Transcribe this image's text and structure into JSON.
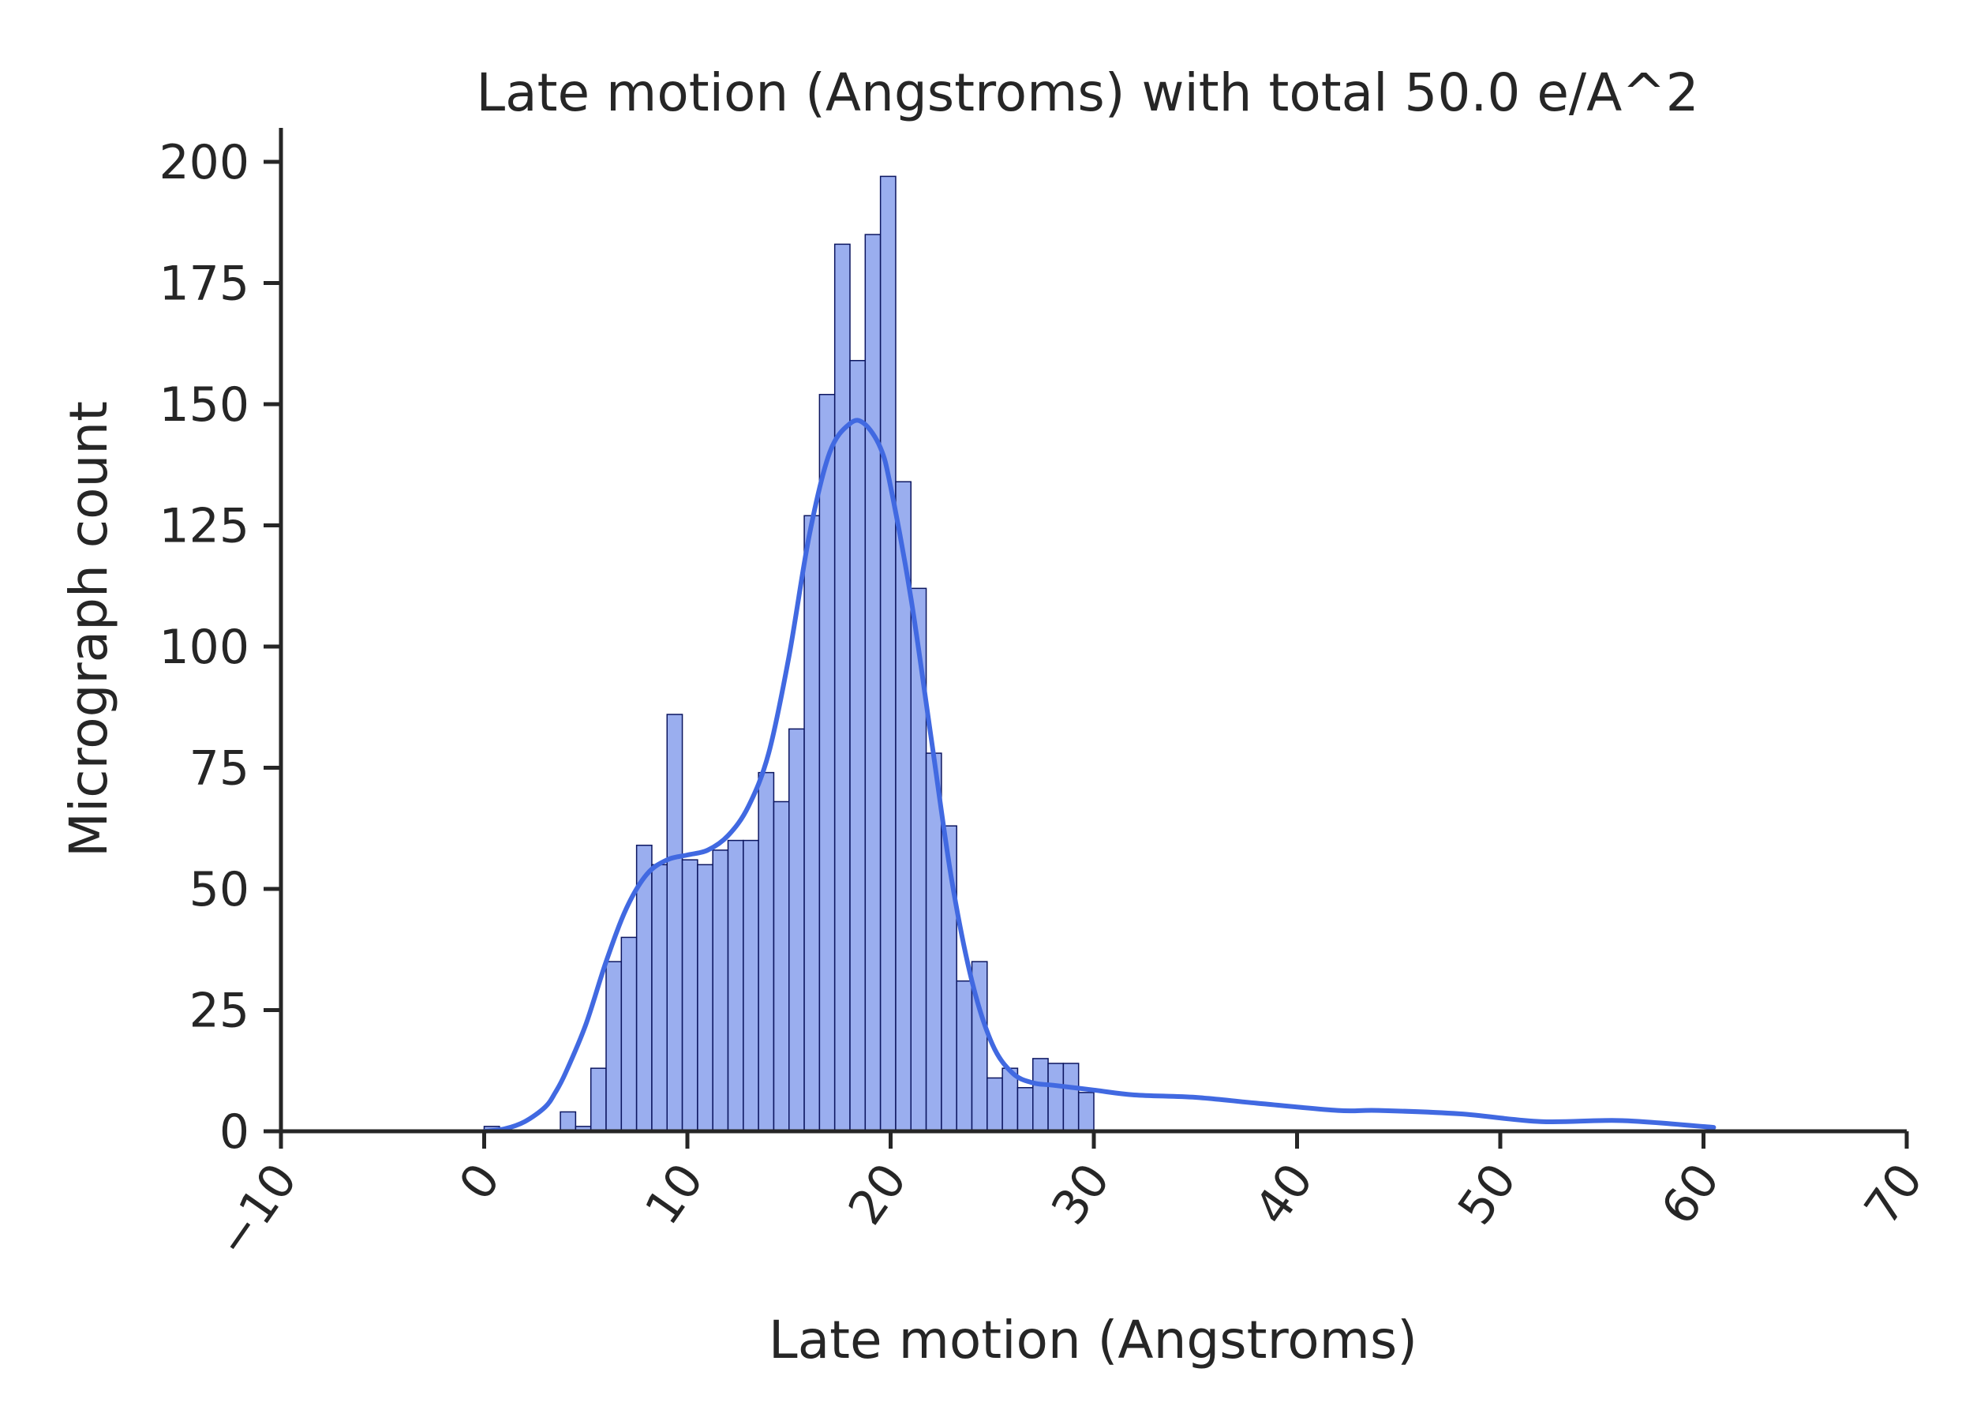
{
  "chart_data": {
    "type": "bar",
    "title": "Late motion (Angstroms) with total 50.0 e/A^2",
    "xlabel": "Late motion (Angstroms)",
    "ylabel": "Micrograph count",
    "xlim": [
      -10,
      70
    ],
    "ylim": [
      0,
      207
    ],
    "xticks": [
      -10,
      0,
      10,
      20,
      30,
      40,
      50,
      60,
      70
    ],
    "xtick_labels": [
      "−10",
      "0",
      "10",
      "20",
      "30",
      "40",
      "50",
      "60",
      "70"
    ],
    "yticks": [
      0,
      25,
      50,
      75,
      100,
      125,
      150,
      175,
      200
    ],
    "ytick_labels": [
      "0",
      "25",
      "50",
      "75",
      "100",
      "125",
      "150",
      "175",
      "200"
    ],
    "grid": false,
    "legend": "none",
    "bin_width": 0.75,
    "bins": [
      {
        "x0": 0.0,
        "count": 1
      },
      {
        "x0": 0.75,
        "count": 0
      },
      {
        "x0": 1.5,
        "count": 0
      },
      {
        "x0": 2.25,
        "count": 0
      },
      {
        "x0": 3.0,
        "count": 0
      },
      {
        "x0": 3.75,
        "count": 4
      },
      {
        "x0": 4.5,
        "count": 1
      },
      {
        "x0": 5.25,
        "count": 13
      },
      {
        "x0": 6.0,
        "count": 35
      },
      {
        "x0": 6.75,
        "count": 40
      },
      {
        "x0": 7.5,
        "count": 59
      },
      {
        "x0": 8.25,
        "count": 55
      },
      {
        "x0": 9.0,
        "count": 86
      },
      {
        "x0": 9.75,
        "count": 56
      },
      {
        "x0": 10.5,
        "count": 55
      },
      {
        "x0": 11.25,
        "count": 58
      },
      {
        "x0": 12.0,
        "count": 60
      },
      {
        "x0": 12.75,
        "count": 60
      },
      {
        "x0": 13.5,
        "count": 74
      },
      {
        "x0": 14.25,
        "count": 68
      },
      {
        "x0": 15.0,
        "count": 83
      },
      {
        "x0": 15.75,
        "count": 127
      },
      {
        "x0": 16.5,
        "count": 152
      },
      {
        "x0": 17.25,
        "count": 183
      },
      {
        "x0": 18.0,
        "count": 159
      },
      {
        "x0": 18.75,
        "count": 185
      },
      {
        "x0": 19.5,
        "count": 197
      },
      {
        "x0": 20.25,
        "count": 134
      },
      {
        "x0": 21.0,
        "count": 112
      },
      {
        "x0": 21.75,
        "count": 78
      },
      {
        "x0": 22.5,
        "count": 63
      },
      {
        "x0": 23.25,
        "count": 31
      },
      {
        "x0": 24.0,
        "count": 35
      },
      {
        "x0": 24.75,
        "count": 11
      },
      {
        "x0": 25.5,
        "count": 13
      },
      {
        "x0": 26.25,
        "count": 9
      },
      {
        "x0": 27.0,
        "count": 15
      },
      {
        "x0": 27.75,
        "count": 14
      },
      {
        "x0": 28.5,
        "count": 14
      },
      {
        "x0": 29.25,
        "count": 8
      }
    ],
    "kde": {
      "x": [
        0,
        1,
        2,
        3,
        3.5,
        4,
        5,
        6,
        7,
        8,
        9,
        10,
        11,
        12,
        13,
        14,
        15,
        16,
        17,
        18,
        18.7,
        19.5,
        20,
        21,
        22,
        23,
        24,
        25,
        26,
        27,
        28,
        30,
        32,
        35,
        38,
        42,
        44,
        48,
        52,
        56,
        60.5
      ],
      "y": [
        0,
        0.5,
        2,
        5,
        8,
        12,
        22,
        35,
        46,
        53,
        56,
        57,
        58,
        61,
        67,
        78,
        98,
        123,
        140,
        146,
        146,
        141,
        133,
        110,
        81,
        52,
        31,
        18,
        12,
        10,
        9.5,
        8.5,
        7.5,
        7,
        5.8,
        4.3,
        4.3,
        3.6,
        2,
        2.2,
        0.8
      ]
    },
    "colors": {
      "bar_fill": "#9aaeef",
      "bar_edge": "#0c1660",
      "kde_line": "#4169e1"
    }
  }
}
